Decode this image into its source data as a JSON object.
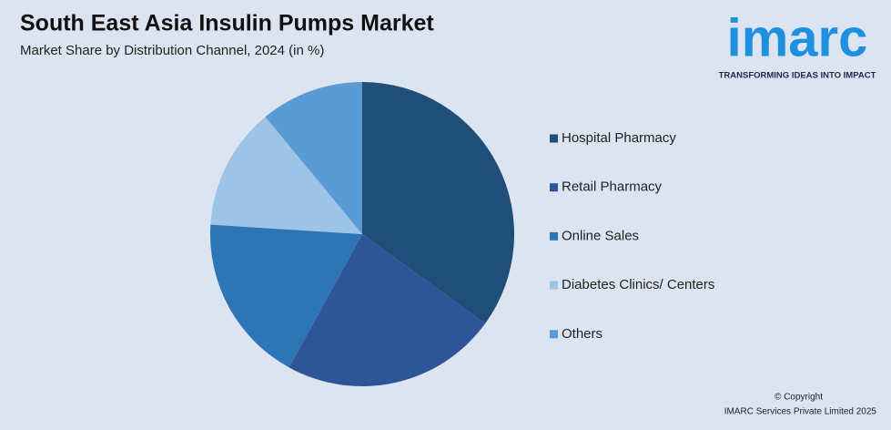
{
  "chart_data": {
    "type": "pie",
    "title": "South East Asia Insulin Pumps Market",
    "subtitle": "Market Share by Distribution Channel, 2024 (in %)",
    "categories": [
      "Hospital Pharmacy",
      "Retail Pharmacy",
      "Online Sales",
      "Diabetes Clinics/ Centers",
      "Others"
    ],
    "values": [
      35,
      23,
      18,
      13,
      11
    ],
    "colors": [
      "#1f4e79",
      "#2e5597",
      "#2e75b6",
      "#9dc3e6",
      "#5b9bd5"
    ],
    "legend": "right"
  },
  "logo": {
    "name": "imarc",
    "tagline": "TRANSFORMING IDEAS INTO IMPACT"
  },
  "footer": {
    "copyright": "© Copyright",
    "company": "IMARC Services Private Limited 2025"
  }
}
